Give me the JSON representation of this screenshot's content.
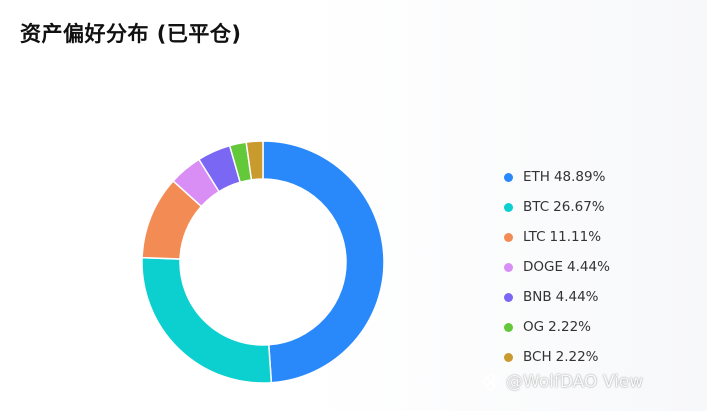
{
  "title": "资产偏好分布 (已平仓)",
  "watermark": {
    "text": "@WolfDAO View",
    "icon": "binance-diamond-icon"
  },
  "chart_data": {
    "type": "pie",
    "variant": "donut",
    "legend_position": "right",
    "series": [
      {
        "name": "ETH",
        "value": 48.89,
        "label": "48.89%",
        "color": "#2989fb"
      },
      {
        "name": "BTC",
        "value": 26.67,
        "label": "26.67%",
        "color": "#0ccfd0"
      },
      {
        "name": "LTC",
        "value": 11.11,
        "label": "11.11%",
        "color": "#f28c54"
      },
      {
        "name": "DOGE",
        "value": 4.44,
        "label": "4.44%",
        "color": "#d98ef5"
      },
      {
        "name": "BNB",
        "value": 4.44,
        "label": "4.44%",
        "color": "#7a68f5"
      },
      {
        "name": "OG",
        "value": 2.22,
        "label": "2.22%",
        "color": "#63c83a"
      },
      {
        "name": "BCH",
        "value": 2.22,
        "label": "2.22%",
        "color": "#c99a2e"
      }
    ]
  }
}
